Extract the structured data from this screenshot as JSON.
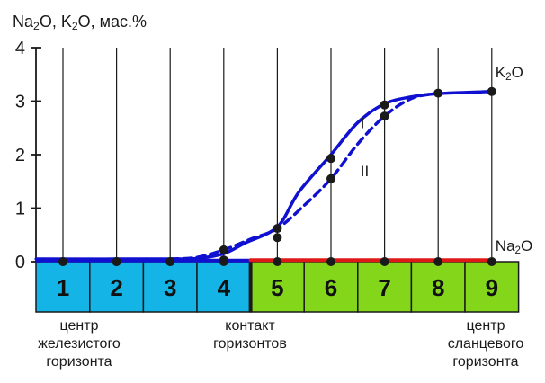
{
  "chart_data": {
    "type": "line",
    "ylabel_parts": [
      {
        "t": "Na",
        "sub": false
      },
      {
        "t": "2",
        "sub": true
      },
      {
        "t": "O, K",
        "sub": false
      },
      {
        "t": "2",
        "sub": true
      },
      {
        "t": "O, мас.%",
        "sub": false
      }
    ],
    "ylim": [
      0,
      4
    ],
    "yticks": [
      "0",
      "1",
      "2",
      "3",
      "4"
    ],
    "x_positions": [
      1,
      2,
      3,
      4,
      5,
      6,
      7,
      8,
      9
    ],
    "series": [
      {
        "key": "K2O_I",
        "name": "I",
        "style": "solid",
        "color": "#1010d0",
        "curve": [
          [
            0.5,
            0.05
          ],
          [
            3,
            0.05
          ],
          [
            3.5,
            0.06
          ],
          [
            4,
            0.15
          ],
          [
            4.4,
            0.35
          ],
          [
            5,
            0.65
          ],
          [
            5.4,
            1.3
          ],
          [
            6,
            2.0
          ],
          [
            6.5,
            2.6
          ],
          [
            7,
            2.95
          ],
          [
            7.5,
            3.08
          ],
          [
            8,
            3.14
          ],
          [
            9,
            3.18
          ]
        ],
        "points": [
          [
            1,
            0
          ],
          [
            2,
            0
          ],
          [
            3,
            0
          ],
          [
            4,
            0.03
          ],
          [
            5,
            0.45
          ],
          [
            6,
            1.93
          ],
          [
            7,
            2.93
          ],
          [
            8,
            3.15
          ],
          [
            9,
            3.18
          ]
        ]
      },
      {
        "key": "K2O_II",
        "name": "II",
        "style": "dashed",
        "color": "#1010d0",
        "curve": [
          [
            3,
            0.05
          ],
          [
            3.5,
            0.08
          ],
          [
            4,
            0.22
          ],
          [
            4.5,
            0.42
          ],
          [
            5,
            0.62
          ],
          [
            5.5,
            1.05
          ],
          [
            6,
            1.55
          ],
          [
            6.5,
            2.2
          ],
          [
            7,
            2.72
          ],
          [
            7.5,
            3.05
          ],
          [
            8,
            3.15
          ]
        ],
        "points": [
          [
            4,
            0.22
          ],
          [
            5,
            0.62
          ],
          [
            6,
            1.55
          ],
          [
            7,
            2.72
          ]
        ]
      },
      {
        "key": "Na2O",
        "name": "",
        "style": "solid",
        "color": "#e01818",
        "curve": [
          [
            4.5,
            0.03
          ],
          [
            9,
            0.03
          ]
        ],
        "points": [
          [
            1,
            0
          ],
          [
            2,
            0
          ],
          [
            3,
            0
          ],
          [
            4,
            0
          ],
          [
            5,
            0
          ],
          [
            6,
            0
          ],
          [
            7,
            0
          ],
          [
            8,
            0
          ],
          [
            9,
            0
          ]
        ]
      }
    ],
    "end_labels": [
      {
        "parts": [
          {
            "t": "K",
            "sub": false
          },
          {
            "t": "2",
            "sub": true
          },
          {
            "t": "O",
            "sub": false
          }
        ],
        "x": 9,
        "y": 3.18
      },
      {
        "parts": [
          {
            "t": "Na",
            "sub": false
          },
          {
            "t": "2",
            "sub": true
          },
          {
            "t": "O",
            "sub": false
          }
        ],
        "x": 9,
        "y": 0
      }
    ],
    "series_labels": [
      {
        "text": "I",
        "x": 6.55,
        "y": 2.6
      },
      {
        "text": "II",
        "x": 6.55,
        "y": 1.7
      }
    ],
    "cells": [
      {
        "label": "1",
        "zone": "iron"
      },
      {
        "label": "2",
        "zone": "iron"
      },
      {
        "label": "3",
        "zone": "iron"
      },
      {
        "label": "4",
        "zone": "iron"
      },
      {
        "label": "5",
        "zone": "shale"
      },
      {
        "label": "6",
        "zone": "shale"
      },
      {
        "label": "7",
        "zone": "shale"
      },
      {
        "label": "8",
        "zone": "shale"
      },
      {
        "label": "9",
        "zone": "shale"
      }
    ],
    "colors": {
      "iron_cell": "#15b4e6",
      "shale_cell": "#84d61a",
      "axis": "#1a1a1a",
      "marker": "#1a1a1a"
    }
  },
  "captions": {
    "left": [
      "центр",
      "железистого",
      "горизонта"
    ],
    "middle": [
      "контакт",
      "горизонтов"
    ],
    "right": [
      "центр",
      "сланцевого",
      "горизонта"
    ]
  }
}
